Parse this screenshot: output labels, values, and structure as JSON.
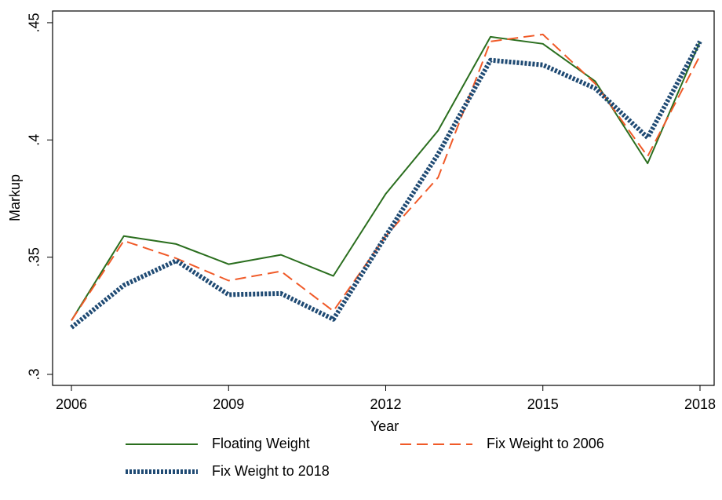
{
  "chart_data": {
    "type": "line",
    "x_label": "Year",
    "y_label": "Markup",
    "x": [
      2006,
      2007,
      2008,
      2009,
      2010,
      2011,
      2012,
      2013,
      2014,
      2015,
      2016,
      2017,
      2018
    ],
    "series": [
      {
        "name": "Floating Weight",
        "color": "#2a6e1e",
        "style": "solid",
        "width": 2,
        "values": [
          0.323,
          0.359,
          0.3556,
          0.347,
          0.351,
          0.342,
          0.377,
          0.404,
          0.444,
          0.441,
          0.425,
          0.39,
          0.442
        ]
      },
      {
        "name": "Fix Weight to 2006",
        "color": "#f05a28",
        "style": "dash",
        "width": 2,
        "values": [
          0.323,
          0.357,
          0.3495,
          0.34,
          0.344,
          0.327,
          0.359,
          0.384,
          0.442,
          0.445,
          0.424,
          0.393,
          0.436
        ]
      },
      {
        "name": "Fix Weight to 2018",
        "color": "#1f4a73",
        "style": "dot",
        "width": 6,
        "values": [
          0.32,
          0.338,
          0.3485,
          0.334,
          0.3345,
          0.3235,
          0.359,
          0.394,
          0.434,
          0.432,
          0.422,
          0.401,
          0.442
        ]
      }
    ],
    "xlim": [
      2005.64,
      2018.27
    ],
    "xticks": [
      2006,
      2009,
      2012,
      2015,
      2018
    ],
    "ylim": [
      0.2953,
      0.455
    ],
    "yticks": [
      {
        "value": 0.3,
        "label": ".3"
      },
      {
        "value": 0.35,
        "label": ".35"
      },
      {
        "value": 0.4,
        "label": ".4"
      },
      {
        "value": 0.45,
        "label": ".45"
      }
    ],
    "grid": false
  }
}
